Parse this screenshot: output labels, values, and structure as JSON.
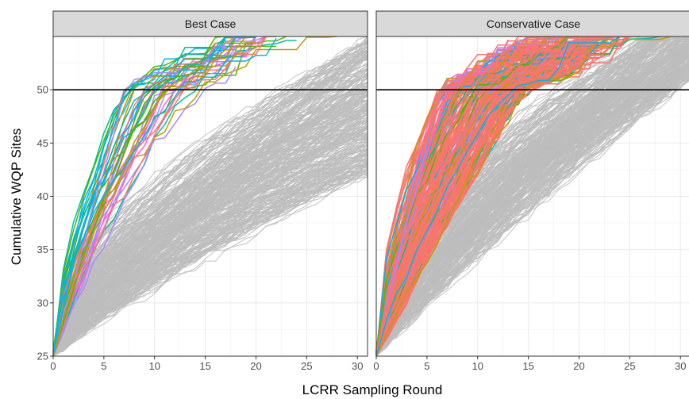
{
  "chart_data": {
    "type": "line",
    "xlabel": "LCRR Sampling Round",
    "ylabel": "Cumulative WQP Sites",
    "xlim": [
      0,
      31
    ],
    "ylim": [
      25,
      55
    ],
    "x_ticks": [
      0,
      5,
      10,
      15,
      20,
      25,
      30
    ],
    "y_ticks": [
      25,
      30,
      35,
      40,
      45,
      50
    ],
    "x_tick_labels": [
      "0",
      "5",
      "10",
      "15",
      "20",
      "25",
      "30"
    ],
    "y_tick_labels": [
      "25",
      "30",
      "35",
      "40",
      "45",
      "50"
    ],
    "reference_line": {
      "y": 50,
      "color": "#000000"
    },
    "grid": true,
    "legend": "none",
    "background_series_color": "#bdbdbd",
    "highlight_palette": [
      "#f8766d",
      "#c49a00",
      "#53b400",
      "#00c094",
      "#00b6eb",
      "#a58aff",
      "#fb61d7"
    ],
    "facets": [
      {
        "title": "Best Case",
        "background_series_count": 300,
        "background_end_range": [
          42,
          55
        ],
        "highlight_series_count": 40,
        "highlight_cross_round_range": [
          7,
          15
        ]
      },
      {
        "title": "Conservative Case",
        "background_series_count": 300,
        "background_end_range": [
          48,
          55
        ],
        "highlight_series_count": 220,
        "highlight_cross_round_range": [
          6,
          15
        ]
      }
    ]
  }
}
